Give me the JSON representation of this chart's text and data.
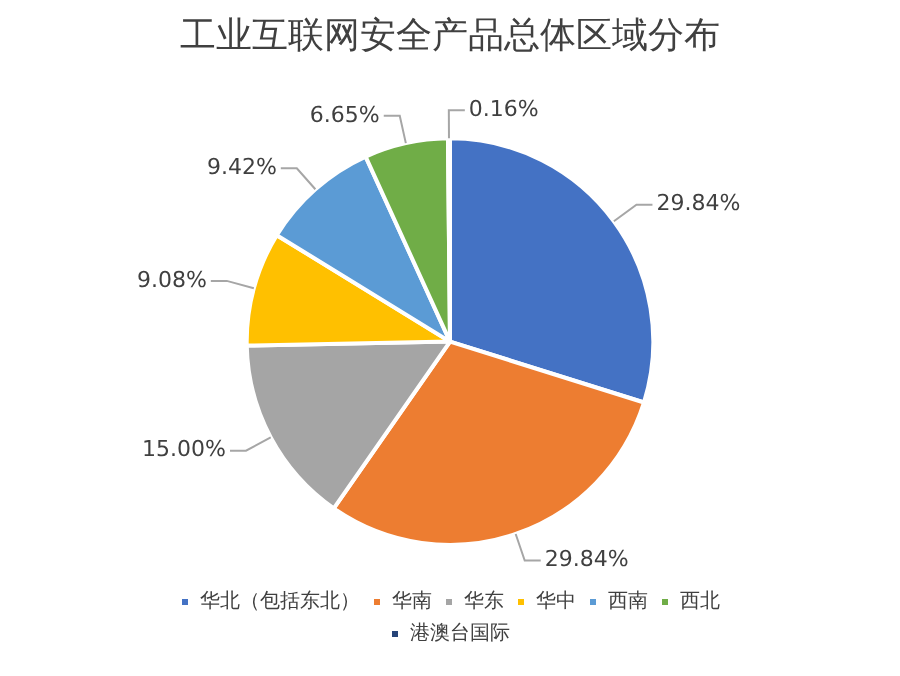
{
  "chart_data": {
    "type": "pie",
    "title": "工业互联网安全产品总体区域分布",
    "categories": [
      "华北（包括东北）",
      "华南",
      "华东",
      "华中",
      "西南",
      "西北",
      "港澳台国际"
    ],
    "values": [
      29.84,
      29.84,
      15.0,
      9.08,
      9.42,
      6.65,
      0.16
    ],
    "value_labels": [
      "29.84%",
      "29.84%",
      "15.00%",
      "9.08%",
      "9.42%",
      "6.65%",
      "0.16%"
    ],
    "colors": [
      "#4472c4",
      "#ed7d31",
      "#a5a5a5",
      "#ffc000",
      "#5b9bd5",
      "#70ad47",
      "#264478"
    ],
    "legend": "bottom"
  }
}
